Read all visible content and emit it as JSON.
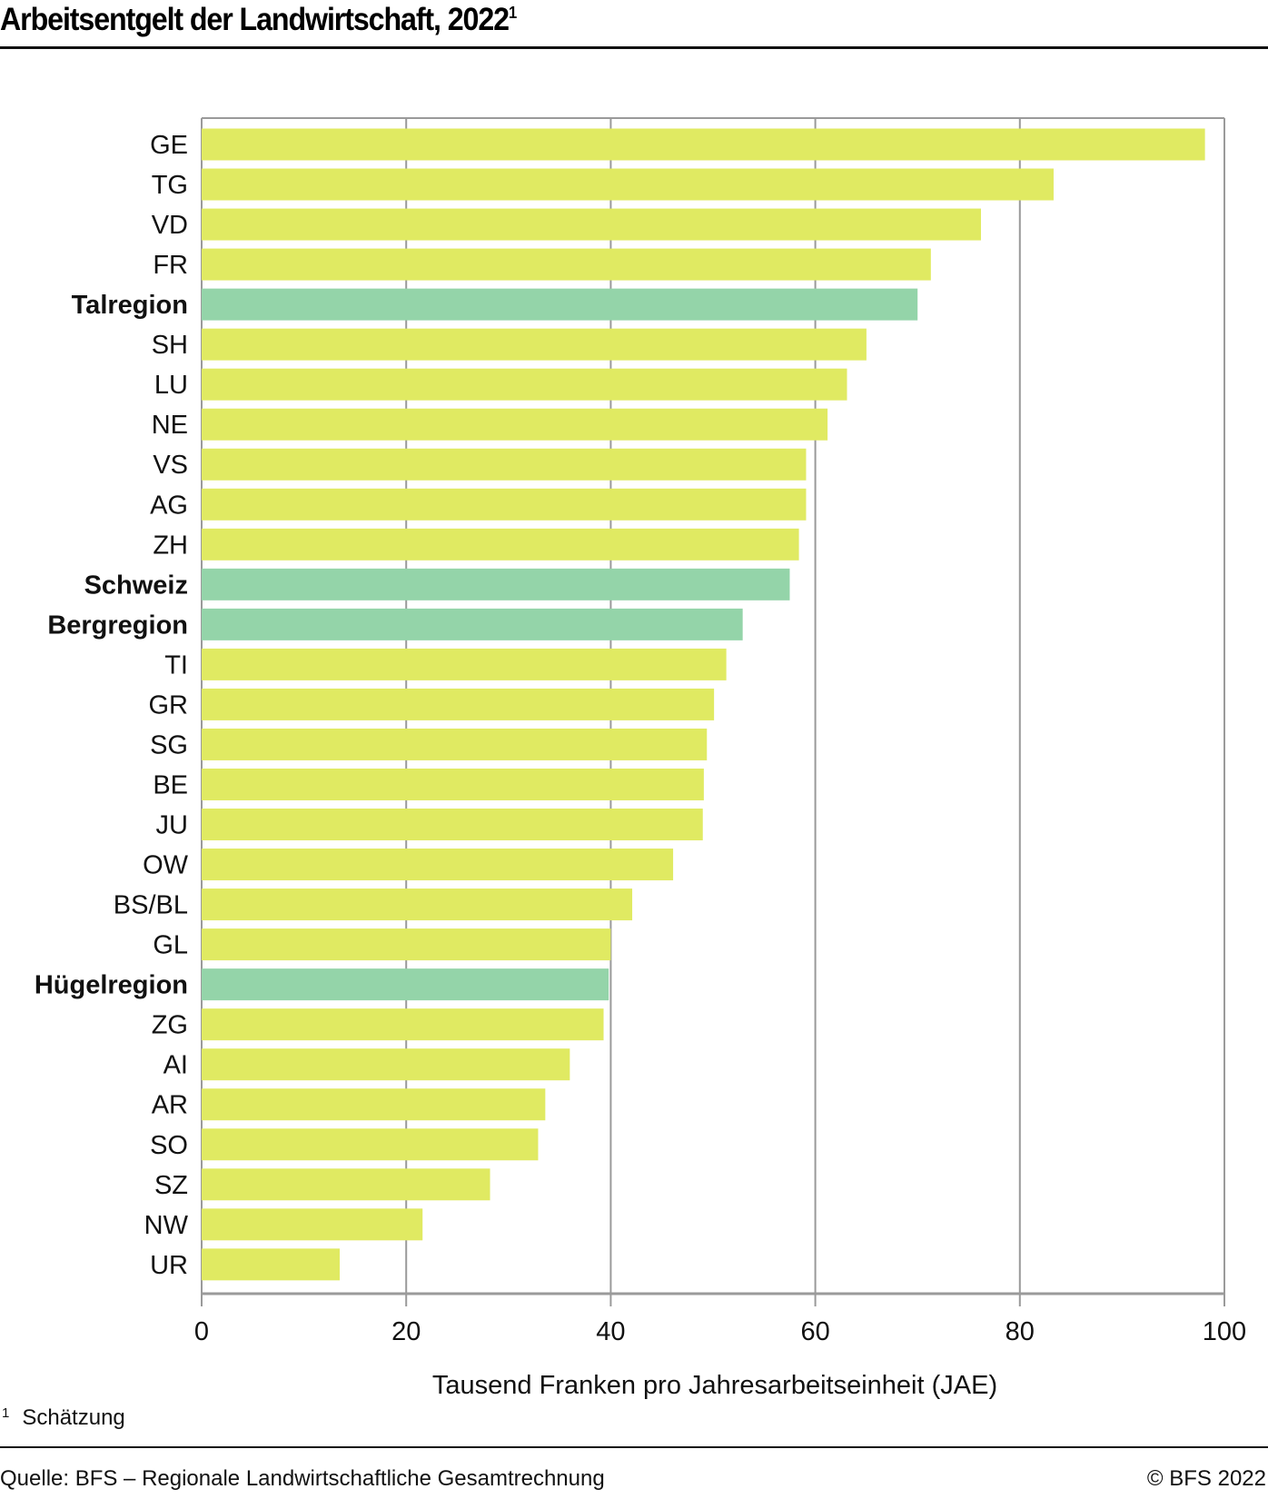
{
  "header": {
    "title": "Arbeitsentgelt der Landwirtschaft, 2022",
    "title_footnote_marker": "1"
  },
  "footer": {
    "footnote_marker": "1",
    "footnote_text": "Schätzung",
    "source": "Quelle: BFS – Regionale Landwirtschaftliche Gesamtrechnung",
    "copyright": "© BFS 2022"
  },
  "colors": {
    "canton": "#e0ea62",
    "region": "#94d4a9",
    "grid": "#9a9a9a",
    "text": "#111111"
  },
  "chart_data": {
    "type": "bar",
    "orientation": "horizontal",
    "title": "Arbeitsentgelt der Landwirtschaft, 2022",
    "xlabel": "Tausend Franken pro Jahresarbeitseinheit (JAE)",
    "ylabel": "",
    "xlim": [
      0,
      100
    ],
    "xticks": [
      0,
      20,
      40,
      60,
      80,
      100
    ],
    "xtick_labels": [
      "0",
      "20",
      "40",
      "60",
      "80",
      "100"
    ],
    "grid": true,
    "legend": "none",
    "categories": [
      "GE",
      "TG",
      "VD",
      "FR",
      "Talregion",
      "SH",
      "LU",
      "NE",
      "VS",
      "AG",
      "ZH",
      "Schweiz",
      "Bergregion",
      "TI",
      "GR",
      "SG",
      "BE",
      "JU",
      "OW",
      "BS/BL",
      "GL",
      "Hügelregion",
      "ZG",
      "AI",
      "AR",
      "SO",
      "SZ",
      "NW",
      "UR"
    ],
    "values": [
      98.1,
      83.3,
      76.2,
      71.3,
      70.0,
      65.0,
      63.1,
      61.2,
      59.1,
      59.1,
      58.4,
      57.5,
      52.9,
      51.3,
      50.1,
      49.4,
      49.1,
      49.0,
      46.1,
      42.1,
      40.0,
      39.8,
      39.3,
      36.0,
      33.6,
      32.9,
      28.2,
      21.6,
      13.5
    ],
    "highlight": [
      false,
      false,
      false,
      false,
      true,
      false,
      false,
      false,
      false,
      false,
      false,
      true,
      true,
      false,
      false,
      false,
      false,
      false,
      false,
      false,
      false,
      true,
      false,
      false,
      false,
      false,
      false,
      false,
      false
    ],
    "footnote": "Schätzung"
  }
}
